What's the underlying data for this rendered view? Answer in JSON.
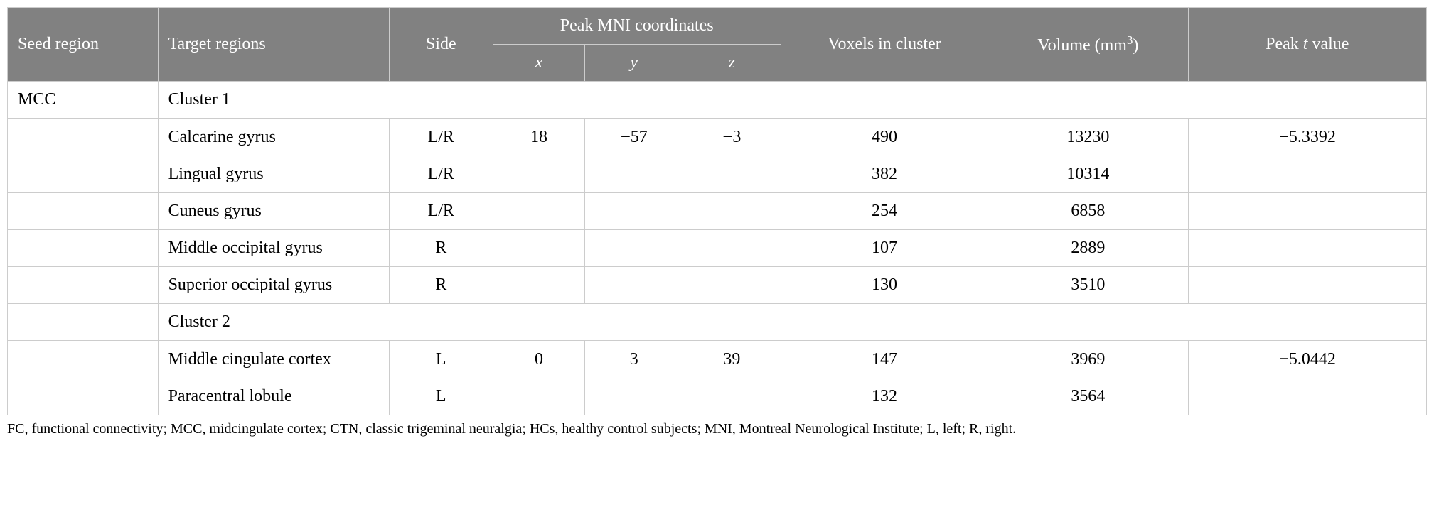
{
  "table": {
    "colors": {
      "header_bg": "#818181",
      "header_text": "#ffffff",
      "border": "#cccccc",
      "body_text": "#000000",
      "body_bg": "#ffffff"
    },
    "font": {
      "family": "Georgia, Times New Roman, serif",
      "header_size": 24,
      "body_size": 24,
      "footnote_size": 20
    },
    "headers": {
      "seed_region": "Seed region",
      "target_regions": "Target regions",
      "side": "Side",
      "peak_mni": "Peak MNI coordinates",
      "voxels": "Voxels in cluster",
      "volume_prefix": "Volume (mm",
      "volume_sup": "3",
      "volume_suffix": ")",
      "peakt_prefix": "Peak ",
      "peakt_italic": "t",
      "peakt_suffix": " value",
      "x": "x",
      "y": "y",
      "z": "z"
    },
    "seed": "MCC",
    "cluster1_label": "Cluster 1",
    "cluster2_label": "Cluster 2",
    "rows": [
      {
        "target": "Calcarine gyrus",
        "side": "L/R",
        "x": "18",
        "y_neg": true,
        "y": "57",
        "z_neg": true,
        "z": "3",
        "voxels": "490",
        "volume": "13230",
        "tval_neg": true,
        "tval": "5.3392"
      },
      {
        "target": "Lingual gyrus",
        "side": "L/R",
        "x": "",
        "y": "",
        "z": "",
        "voxels": "382",
        "volume": "10314",
        "tval": ""
      },
      {
        "target": "Cuneus gyrus",
        "side": "L/R",
        "x": "",
        "y": "",
        "z": "",
        "voxels": "254",
        "volume": "6858",
        "tval": ""
      },
      {
        "target": "Middle occipital gyrus",
        "side": "R",
        "x": "",
        "y": "",
        "z": "",
        "voxels": "107",
        "volume": "2889",
        "tval": ""
      },
      {
        "target": "Superior occipital gyrus",
        "side": "R",
        "x": "",
        "y": "",
        "z": "",
        "voxels": "130",
        "volume": "3510",
        "tval": ""
      }
    ],
    "rows2": [
      {
        "target": "Middle cingulate cortex",
        "side": "L",
        "x": "0",
        "y": "3",
        "z": "39",
        "voxels": "147",
        "volume": "3969",
        "tval_neg": true,
        "tval": "5.0442"
      },
      {
        "target": "Paracentral lobule",
        "side": "L",
        "x": "",
        "y": "",
        "z": "",
        "voxels": "132",
        "volume": "3564",
        "tval": ""
      }
    ],
    "footnote": "FC, functional connectivity; MCC, midcingulate cortex; CTN, classic trigeminal neuralgia; HCs, healthy control subjects; MNI, Montreal Neurological Institute; L, left; R, right."
  }
}
